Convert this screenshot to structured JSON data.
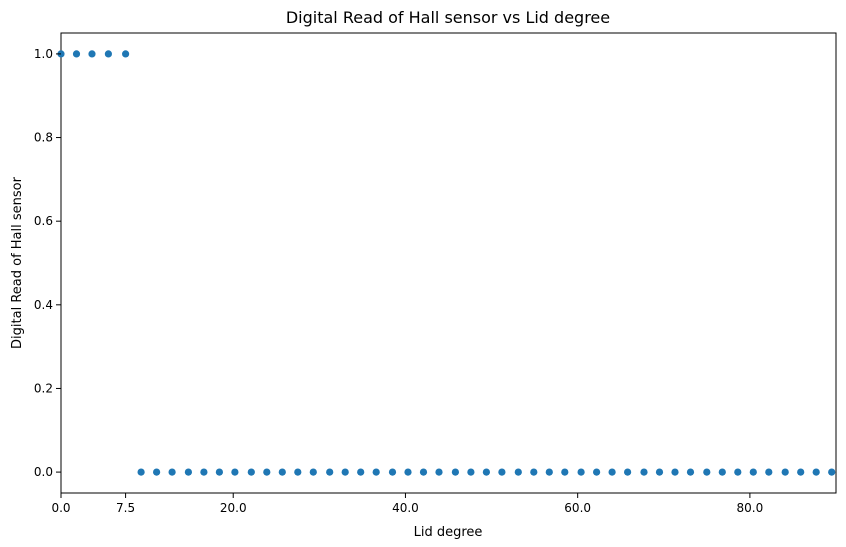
{
  "chart_data": {
    "type": "scatter",
    "title": "Digital Read of Hall sensor vs Lid degree",
    "xlabel": "Lid degree",
    "ylabel": "Digital Read of Hall sensor",
    "xlim": [
      0,
      90
    ],
    "ylim": [
      -0.05,
      1.05
    ],
    "xticks": [
      0,
      7.5,
      20,
      40,
      60,
      80
    ],
    "xtick_labels": [
      "0.0",
      "7.5",
      "20.0",
      "40.0",
      "60.0",
      "80.0"
    ],
    "yticks": [
      0,
      0.2,
      0.4,
      0.6,
      0.8,
      1.0
    ],
    "ytick_labels": [
      "0.0",
      "0.2",
      "0.4",
      "0.6",
      "0.8",
      "1.0"
    ],
    "grid": false,
    "color": "#1f77b4",
    "x": [
      0,
      1.8,
      3.6,
      5.5,
      7.5,
      9.3,
      11.1,
      12.9,
      14.8,
      16.6,
      18.4,
      20.2,
      22.1,
      23.9,
      25.7,
      27.5,
      29.3,
      31.2,
      33.0,
      34.8,
      36.6,
      38.5,
      40.3,
      42.1,
      43.9,
      45.8,
      47.6,
      49.4,
      51.2,
      53.1,
      54.9,
      56.7,
      58.5,
      60.4,
      62.2,
      64.0,
      65.8,
      67.7,
      69.5,
      71.3,
      73.1,
      75.0,
      76.8,
      78.6,
      80.4,
      82.2,
      84.1,
      85.9,
      87.7,
      89.5
    ],
    "y": [
      1,
      1,
      1,
      1,
      1,
      0,
      0,
      0,
      0,
      0,
      0,
      0,
      0,
      0,
      0,
      0,
      0,
      0,
      0,
      0,
      0,
      0,
      0,
      0,
      0,
      0,
      0,
      0,
      0,
      0,
      0,
      0,
      0,
      0,
      0,
      0,
      0,
      0,
      0,
      0,
      0,
      0,
      0,
      0,
      0,
      0,
      0,
      0,
      0,
      0
    ]
  }
}
